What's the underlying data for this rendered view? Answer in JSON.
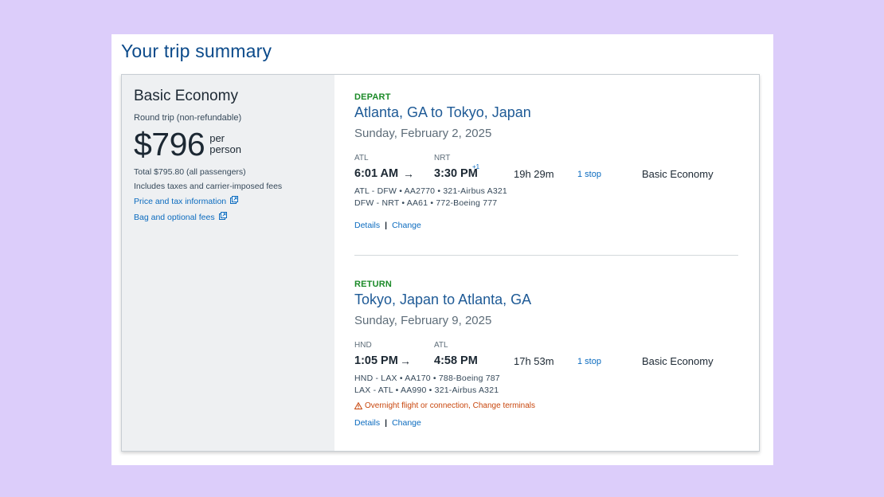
{
  "page": {
    "title": "Your trip summary"
  },
  "fare": {
    "name": "Basic Economy",
    "type": "Round trip (non-refundable)",
    "price": "$796",
    "per_line1": "per",
    "per_line2": "person",
    "total": "Total $795.80 (all passengers)",
    "includes": "Includes taxes and carrier-imposed fees",
    "price_tax_link": "Price and tax information",
    "bag_fees_link": "Bag and optional fees"
  },
  "depart": {
    "label": "DEPART",
    "route": "Atlanta, GA to Tokyo, Japan",
    "date": "Sunday, February 2, 2025",
    "origin_code": "ATL",
    "dest_code": "NRT",
    "depart_time": "6:01 AM",
    "arrive_time": "3:30 PM",
    "day_offset": "+1",
    "duration": "19h 29m",
    "stops": "1 stop",
    "cabin": "Basic Economy",
    "legs": [
      "ATL - DFW • AA2770 • 321-Airbus A321",
      "DFW - NRT • AA61 • 772-Boeing 777"
    ],
    "details_link": "Details",
    "change_link": "Change"
  },
  "return": {
    "label": "RETURN",
    "route": "Tokyo, Japan to Atlanta, GA",
    "date": "Sunday, February 9, 2025",
    "origin_code": "HND",
    "dest_code": "ATL",
    "depart_time": "1:05 PM",
    "arrive_time": "4:58 PM",
    "duration": "17h 53m",
    "stops": "1 stop",
    "cabin": "Basic Economy",
    "legs": [
      "HND - LAX • AA170 • 788-Boeing 787",
      "LAX - ATL • AA990 • 321-Airbus A321"
    ],
    "warning": "Overnight flight or connection, Change terminals",
    "details_link": "Details",
    "change_link": "Change"
  },
  "colors": {
    "background": "#dccdfa",
    "accent_blue": "#0b6bbf",
    "depart_green": "#1b8a28",
    "warning_orange": "#c8470e"
  }
}
